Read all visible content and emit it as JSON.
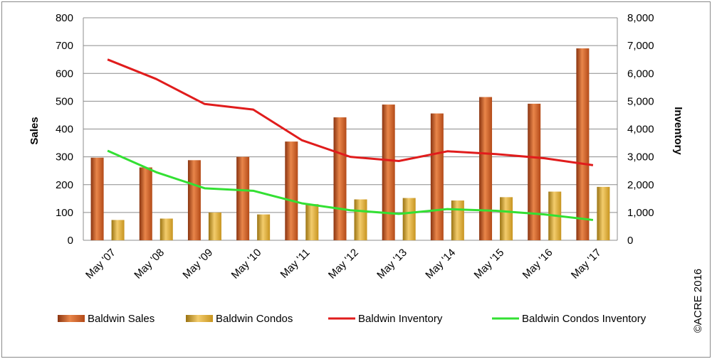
{
  "chart_data": {
    "type": "bar",
    "categories": [
      "May '07",
      "May '08",
      "May '09",
      "May '10",
      "May '11",
      "May '12",
      "May '13",
      "May '14",
      "May '15",
      "May '16",
      "May '17"
    ],
    "series": [
      {
        "name": "Baldwin Sales",
        "kind": "bar",
        "axis": "left",
        "color": "#c0501c",
        "values": [
          297,
          262,
          288,
          300,
          355,
          442,
          488,
          456,
          515,
          491,
          690
        ]
      },
      {
        "name": "Baldwin Condos",
        "kind": "bar",
        "axis": "left",
        "color": "#d9a22a",
        "values": [
          73,
          78,
          100,
          93,
          130,
          147,
          152,
          143,
          155,
          175,
          192
        ]
      },
      {
        "name": "Baldwin Inventory",
        "kind": "line",
        "axis": "right",
        "color": "#e01c1c",
        "values": [
          6500,
          5800,
          4900,
          4700,
          3600,
          3000,
          2850,
          3200,
          3100,
          2950,
          2700
        ]
      },
      {
        "name": "Baldwin Condos Inventory",
        "kind": "line",
        "axis": "right",
        "color": "#33e033",
        "values": [
          3220,
          2450,
          1870,
          1780,
          1330,
          1080,
          950,
          1120,
          1060,
          930,
          730
        ]
      }
    ],
    "ylabel": "Sales",
    "y2label": "Inventory",
    "ylim": [
      0,
      800
    ],
    "y2lim": [
      0,
      8000
    ],
    "yticks": [
      "0",
      "100",
      "200",
      "300",
      "400",
      "500",
      "600",
      "700",
      "800"
    ],
    "y2ticks": [
      "0",
      "1,000",
      "2,000",
      "3,000",
      "4,000",
      "5,000",
      "6,000",
      "7,000",
      "8,000"
    ],
    "grid": true,
    "legend_position": "bottom"
  },
  "copyright": "©ACRE 2016"
}
